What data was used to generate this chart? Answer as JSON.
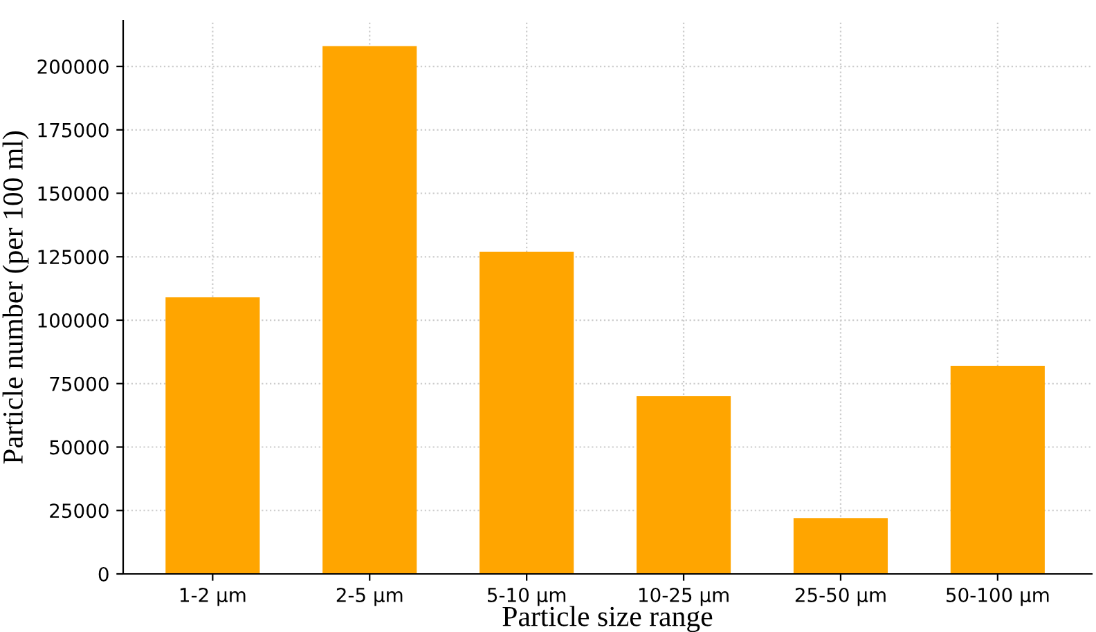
{
  "chart_data": {
    "type": "bar",
    "xlabel": "Particle size range",
    "ylabel": "Particle number (per 100 ml)",
    "categories": [
      "1-2 µm",
      "2-5 µm",
      "5-10 µm",
      "10-25 µm",
      "25-50 µm",
      "50-100 µm"
    ],
    "values": [
      109000,
      208000,
      127000,
      70000,
      22000,
      82000
    ],
    "color": "#ffa500",
    "ylim": [
      0,
      218000
    ],
    "yticks": [
      0,
      25000,
      50000,
      75000,
      100000,
      125000,
      150000,
      175000,
      200000
    ],
    "grid": true
  }
}
